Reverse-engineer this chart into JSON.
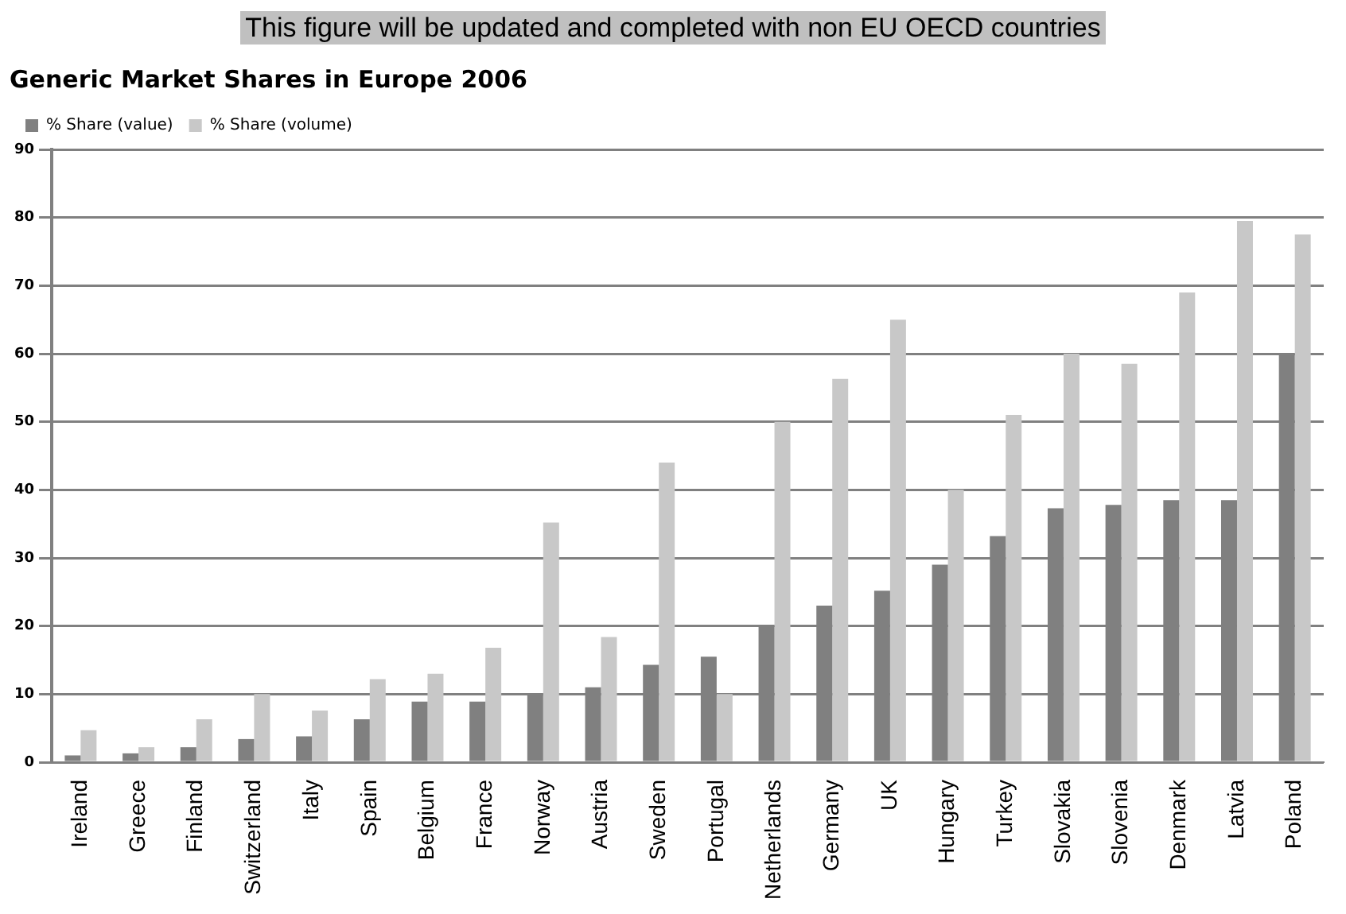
{
  "chart_data": {
    "type": "bar",
    "title": "Generic Market Shares in Europe 2006",
    "annotations": [
      "This figure will be updated and completed with non EU OECD countries"
    ],
    "categories": [
      "Ireland",
      "Greece",
      "Finland",
      "Switzerland",
      "Italy",
      "Spain",
      "Belgium",
      "France",
      "Norway",
      "Austria",
      "Sweden",
      "Portugal",
      "Netherlands",
      "Germany",
      "UK",
      "Hungary",
      "Turkey",
      "Slovakia",
      "Slovenia",
      "Denmark",
      "Latvia",
      "Poland"
    ],
    "series": [
      {
        "name": "% Share (value)",
        "color": "#808080",
        "values": [
          1,
          1.3,
          2.2,
          3.4,
          3.8,
          6.3,
          8.9,
          8.9,
          10,
          11,
          14.3,
          15.5,
          20,
          23,
          25.2,
          29,
          33.2,
          37.3,
          37.8,
          38.5,
          38.5,
          60
        ]
      },
      {
        "name": "% Share (volume)",
        "color": "#c8c8c8",
        "values": [
          4.7,
          2.2,
          6.3,
          10,
          7.6,
          12.2,
          13,
          16.8,
          35.2,
          18.4,
          44,
          10,
          50,
          56.3,
          65,
          40,
          51,
          60,
          58.5,
          69,
          79.5,
          77.5
        ]
      }
    ],
    "ylim": [
      0,
      90
    ],
    "yticks": [
      0,
      10,
      20,
      30,
      40,
      50,
      60,
      70,
      80,
      90
    ],
    "grid": "y",
    "legend": "top left"
  }
}
